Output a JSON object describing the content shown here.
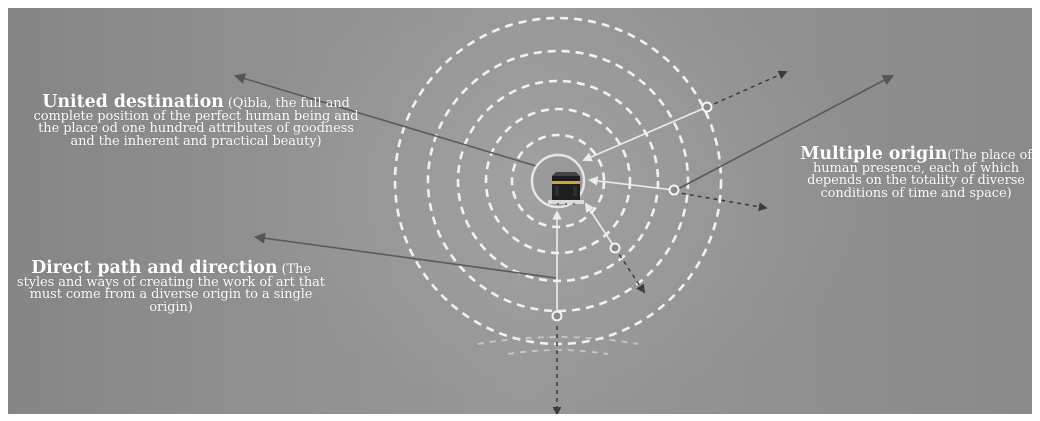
{
  "labels": {
    "united": {
      "head": "United destination",
      "body": " (Qibla, the full and complete position of the perfect human being and  the place od one hundred attributes of goodness and the inherent and practical beauty)"
    },
    "multiple": {
      "head": "Multiple origin",
      "body": "(The place of human presence, each of which depends on the totality of diverse conditions of time and space)"
    },
    "direct": {
      "head": "Direct path and direction",
      "body": " (The styles and ways of creating the work of art that must come from a diverse origin to a single origin)"
    }
  },
  "center_icon": "kaaba-icon",
  "colors": {
    "background": "#909090",
    "rings": "#f2f2f2",
    "arrows": "#5a5a5a",
    "dark_dashes": "#4a4a4a"
  }
}
